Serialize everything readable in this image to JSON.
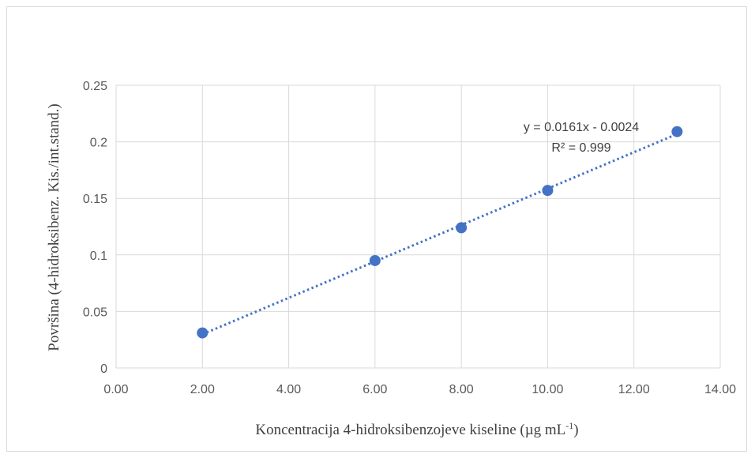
{
  "chart_data": {
    "type": "scatter",
    "xlabel": "Koncentracija 4-hidroksibenzojeve kiseline (µg mL",
    "xlabel_sup": "-1",
    "xlabel_end": ")",
    "ylabel": "Površina (4-hidroksibenz. Kis./int.stand.)",
    "xlim": [
      0,
      14
    ],
    "ylim": [
      0,
      0.25
    ],
    "x_ticks": [
      "0.00",
      "2.00",
      "4.00",
      "6.00",
      "8.00",
      "10.00",
      "12.00",
      "14.00"
    ],
    "y_ticks": [
      "0",
      "0.05",
      "0.1",
      "0.15",
      "0.2",
      "0.25"
    ],
    "grid": true,
    "series": [
      {
        "x": [
          2,
          6,
          8,
          10,
          13
        ],
        "y": [
          0.031,
          0.095,
          0.124,
          0.157,
          0.209
        ],
        "color": "#4472c4"
      }
    ],
    "trendline": {
      "slope": 0.0161,
      "intercept": -0.0024,
      "x_range": [
        2,
        13
      ],
      "style": "dotted",
      "color": "#4472c4",
      "equation_label": "y = 0.0161x - 0.0024",
      "r2_label": "R² = 0.999"
    }
  }
}
